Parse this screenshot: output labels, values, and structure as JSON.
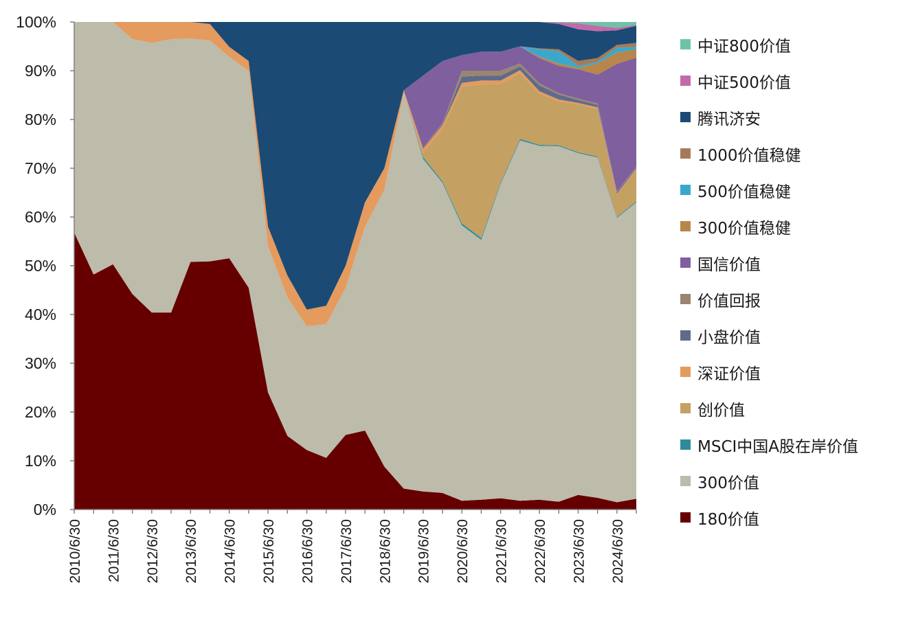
{
  "chart_data": {
    "type": "area",
    "stacked": true,
    "normalized": true,
    "title": "",
    "xlabel": "",
    "ylabel": "",
    "ylim": [
      0,
      100
    ],
    "y_ticks": [
      "0%",
      "10%",
      "20%",
      "30%",
      "40%",
      "50%",
      "60%",
      "70%",
      "80%",
      "90%",
      "100%"
    ],
    "x_tick_labels": [
      "2010/6/30",
      "2011/6/30",
      "2012/6/30",
      "2013/6/30",
      "2014/6/30",
      "2015/6/30",
      "2016/6/30",
      "2017/6/30",
      "2018/6/30",
      "2019/6/30",
      "2020/6/30",
      "2021/6/30",
      "2022/6/30",
      "2023/6/30",
      "2024/6/30"
    ],
    "x": [
      "2010/6/30",
      "2010/12/31",
      "2011/6/30",
      "2011/12/31",
      "2012/6/30",
      "2012/12/31",
      "2013/6/30",
      "2013/12/31",
      "2014/6/30",
      "2014/12/31",
      "2015/6/30",
      "2015/12/31",
      "2016/6/30",
      "2016/12/31",
      "2017/6/30",
      "2017/12/31",
      "2018/6/30",
      "2018/12/31",
      "2019/6/30",
      "2019/12/31",
      "2020/6/30",
      "2020/12/31",
      "2021/6/30",
      "2021/12/31",
      "2022/6/30",
      "2022/12/31",
      "2023/6/30",
      "2023/12/31",
      "2024/6/30",
      "2024/12/31"
    ],
    "legend_position": "right",
    "grid": false,
    "series": [
      {
        "name": "180价值",
        "color": "#660000",
        "values": [
          56.8,
          48.2,
          50.3,
          44.2,
          40.4,
          40.4,
          50.8,
          51.1,
          50.5,
          45.5,
          24.0,
          15.1,
          12.2,
          10.6,
          15.3,
          16.2,
          8.8,
          4.3,
          3.7,
          3.4,
          1.8,
          2.0,
          2.3,
          1.8,
          2.0,
          1.6,
          3.0,
          2.4,
          1.5,
          2.2
        ]
      },
      {
        "name": "300价值",
        "color": "#bdbbaa",
        "values": [
          43.2,
          51.8,
          49.7,
          52.3,
          55.3,
          56.1,
          45.8,
          45.5,
          40.5,
          44.5,
          30.0,
          28.4,
          25.4,
          27.4,
          30.2,
          41.8,
          56.8,
          81.2,
          68.2,
          63.6,
          56.5,
          53.3,
          64.5,
          73.9,
          72.6,
          72.9,
          70.1,
          69.8,
          58.3,
          60.8
        ]
      },
      {
        "name": "MSCI中国A股在岸价值",
        "color": "#2e8b9c",
        "values": [
          0,
          0,
          0,
          0,
          0,
          0,
          0,
          0,
          0,
          0,
          0,
          0,
          0,
          0,
          0,
          0,
          0,
          0,
          0.4,
          0.3,
          0.4,
          0.4,
          0.3,
          0.3,
          0.2,
          0.2,
          0.2,
          0.2,
          0.2,
          0.2
        ]
      },
      {
        "name": "创价值",
        "color": "#c4a062",
        "values": [
          0,
          0,
          0,
          0,
          0,
          0,
          0,
          0,
          0,
          0,
          0,
          0,
          0,
          0,
          0,
          0,
          0,
          0,
          0.8,
          10.7,
          28.0,
          31.5,
          20.2,
          13.5,
          10.5,
          9.0,
          9.8,
          9.8,
          4.5,
          6.5
        ]
      },
      {
        "name": "深证价值",
        "color": "#e59a5e",
        "values": [
          0,
          0,
          0,
          3.5,
          4.3,
          3.5,
          3.4,
          3.4,
          2.0,
          2.0,
          4.0,
          4.5,
          3.4,
          3.8,
          4.5,
          5.0,
          4.4,
          0.5,
          0.9,
          0.8,
          0.8,
          0.8,
          0.7,
          0.6,
          0.5,
          0.4,
          0.3,
          0.3,
          0.2,
          0.2
        ]
      },
      {
        "name": "小盘价值",
        "color": "#5e6b8a",
        "values": [
          0,
          0,
          0,
          0,
          0,
          0,
          0,
          0,
          0,
          0,
          0,
          0,
          0,
          0,
          0,
          0,
          0,
          0,
          0.2,
          0.2,
          1.3,
          1.0,
          1.0,
          0.8,
          1.2,
          1.0,
          0.6,
          0.5,
          0.3,
          0.2
        ]
      },
      {
        "name": "价值回报",
        "color": "#9a8570",
        "values": [
          0,
          0,
          0,
          0,
          0,
          0,
          0,
          0,
          0,
          0,
          0,
          0,
          0,
          0,
          0,
          0,
          0,
          0,
          0,
          0.2,
          1.2,
          1.0,
          1.0,
          0.6,
          0.4,
          0.3,
          0.3,
          0.3,
          0.2,
          0.2
        ]
      },
      {
        "name": "国信价值",
        "color": "#7f5f9e",
        "values": [
          0,
          0,
          0,
          0,
          0,
          0,
          0,
          0,
          0,
          0,
          0,
          0,
          0,
          0,
          0,
          0,
          0,
          0,
          14.8,
          12.8,
          3.2,
          3.9,
          3.9,
          3.5,
          5.2,
          5.6,
          6.0,
          5.9,
          26.2,
          22.4
        ]
      },
      {
        "name": "300价值稳健",
        "color": "#b8864a",
        "values": [
          0,
          0,
          0,
          0,
          0,
          0,
          0,
          0,
          0,
          0,
          0,
          0,
          0,
          0,
          0,
          0,
          0,
          0,
          0,
          0,
          0,
          0,
          0,
          0,
          0.3,
          0.5,
          0.3,
          2.3,
          2.3,
          1.7
        ]
      },
      {
        "name": "500价值稳健",
        "color": "#3aa8cc",
        "values": [
          0,
          0,
          0,
          0,
          0,
          0,
          0,
          0,
          0,
          0,
          0,
          0,
          0,
          0,
          0,
          0,
          0,
          0,
          0,
          0,
          0,
          0,
          0,
          0,
          1.5,
          2.5,
          0.4,
          0.3,
          1.0,
          0.5
        ]
      },
      {
        "name": "1000价值稳健",
        "color": "#a57a5a",
        "values": [
          0,
          0,
          0,
          0,
          0,
          0,
          0,
          0,
          0,
          0,
          0,
          0,
          0,
          0,
          0,
          0,
          0,
          0,
          0,
          0,
          0,
          0,
          0,
          0,
          0.2,
          0.4,
          1.0,
          0.8,
          0.6,
          0.8
        ]
      },
      {
        "name": "腾讯济安",
        "color": "#1b4a74",
        "values": [
          0,
          0,
          0,
          0,
          0,
          0,
          0,
          0.4,
          5.0,
          8.0,
          42.0,
          52.0,
          59.0,
          58.2,
          50.0,
          37.0,
          30.0,
          14.0,
          11.0,
          8.0,
          6.8,
          6.1,
          6.1,
          5.0,
          5.4,
          5.2,
          6.5,
          5.5,
          3.0,
          3.5
        ]
      },
      {
        "name": "中证500价值",
        "color": "#c469a8",
        "values": [
          0,
          0,
          0,
          0,
          0,
          0,
          0,
          0,
          0,
          0,
          0,
          0,
          0,
          0,
          0,
          0,
          0,
          0,
          0,
          0,
          0,
          0,
          0,
          0,
          0,
          0.3,
          1.2,
          1.1,
          0.5,
          0.2
        ]
      },
      {
        "name": "中证800价值",
        "color": "#6ec3a5",
        "values": [
          0,
          0,
          0,
          0,
          0,
          0,
          0,
          0,
          0,
          0,
          0,
          0,
          0,
          0,
          0,
          0,
          0,
          0,
          0,
          0,
          0,
          0,
          0,
          0,
          0,
          0.1,
          0.3,
          0.8,
          1.2,
          0.6
        ]
      }
    ],
    "legend_order": [
      "中证800价值",
      "中证500价值",
      "腾讯济安",
      "1000价值稳健",
      "500价值稳健",
      "300价值稳健",
      "国信价值",
      "价值回报",
      "小盘价值",
      "深证价值",
      "创价值",
      "MSCI中国A股在岸价值",
      "300价值",
      "180价值"
    ]
  }
}
